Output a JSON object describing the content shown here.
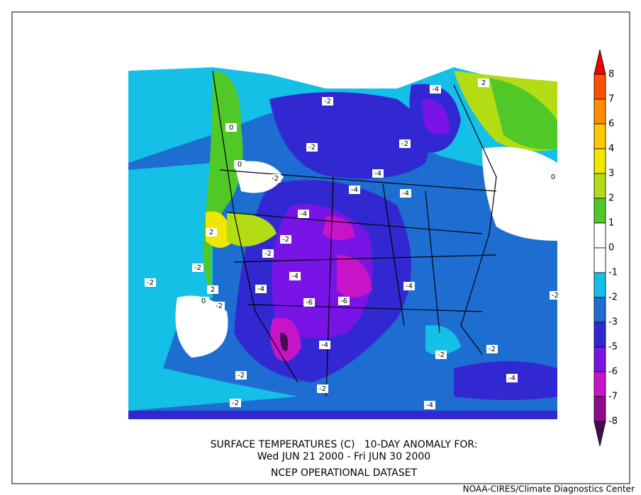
{
  "title": {
    "line1": "SURFACE TEMPERATURES (C)   10-DAY ANOMALY FOR:",
    "line2": "Wed JUN 21 2000 - Fri JUN 30 2000",
    "line3": "NCEP OPERATIONAL DATASET"
  },
  "credit": "NOAA-CIRES/Climate Diagnostics Center",
  "colorbar": {
    "labels": [
      8,
      7,
      6,
      4,
      3,
      2,
      1,
      0,
      -1,
      -2,
      -3,
      -5,
      -6,
      -7,
      -8
    ],
    "colors": [
      "#f00000",
      "#ff5000",
      "#ff8c00",
      "#ffc800",
      "#f0e600",
      "#b4dc14",
      "#50c828",
      "#ffffff",
      "#ffffff",
      "#14c0e6",
      "#1e6ed2",
      "#3228d2",
      "#7814e6",
      "#c814c8",
      "#8c0a8c",
      "#460a50"
    ]
  },
  "contour_labels": [
    -2,
    -2,
    -2,
    -4,
    -4,
    -4,
    -4,
    -4,
    -2,
    -2,
    -2,
    -2,
    -2,
    -4,
    -4,
    -4,
    -6,
    -6,
    -2,
    -4,
    -2,
    -2,
    -2,
    -2,
    -4,
    -2,
    -4,
    0,
    2,
    2,
    0,
    0,
    2,
    0,
    -2
  ]
}
